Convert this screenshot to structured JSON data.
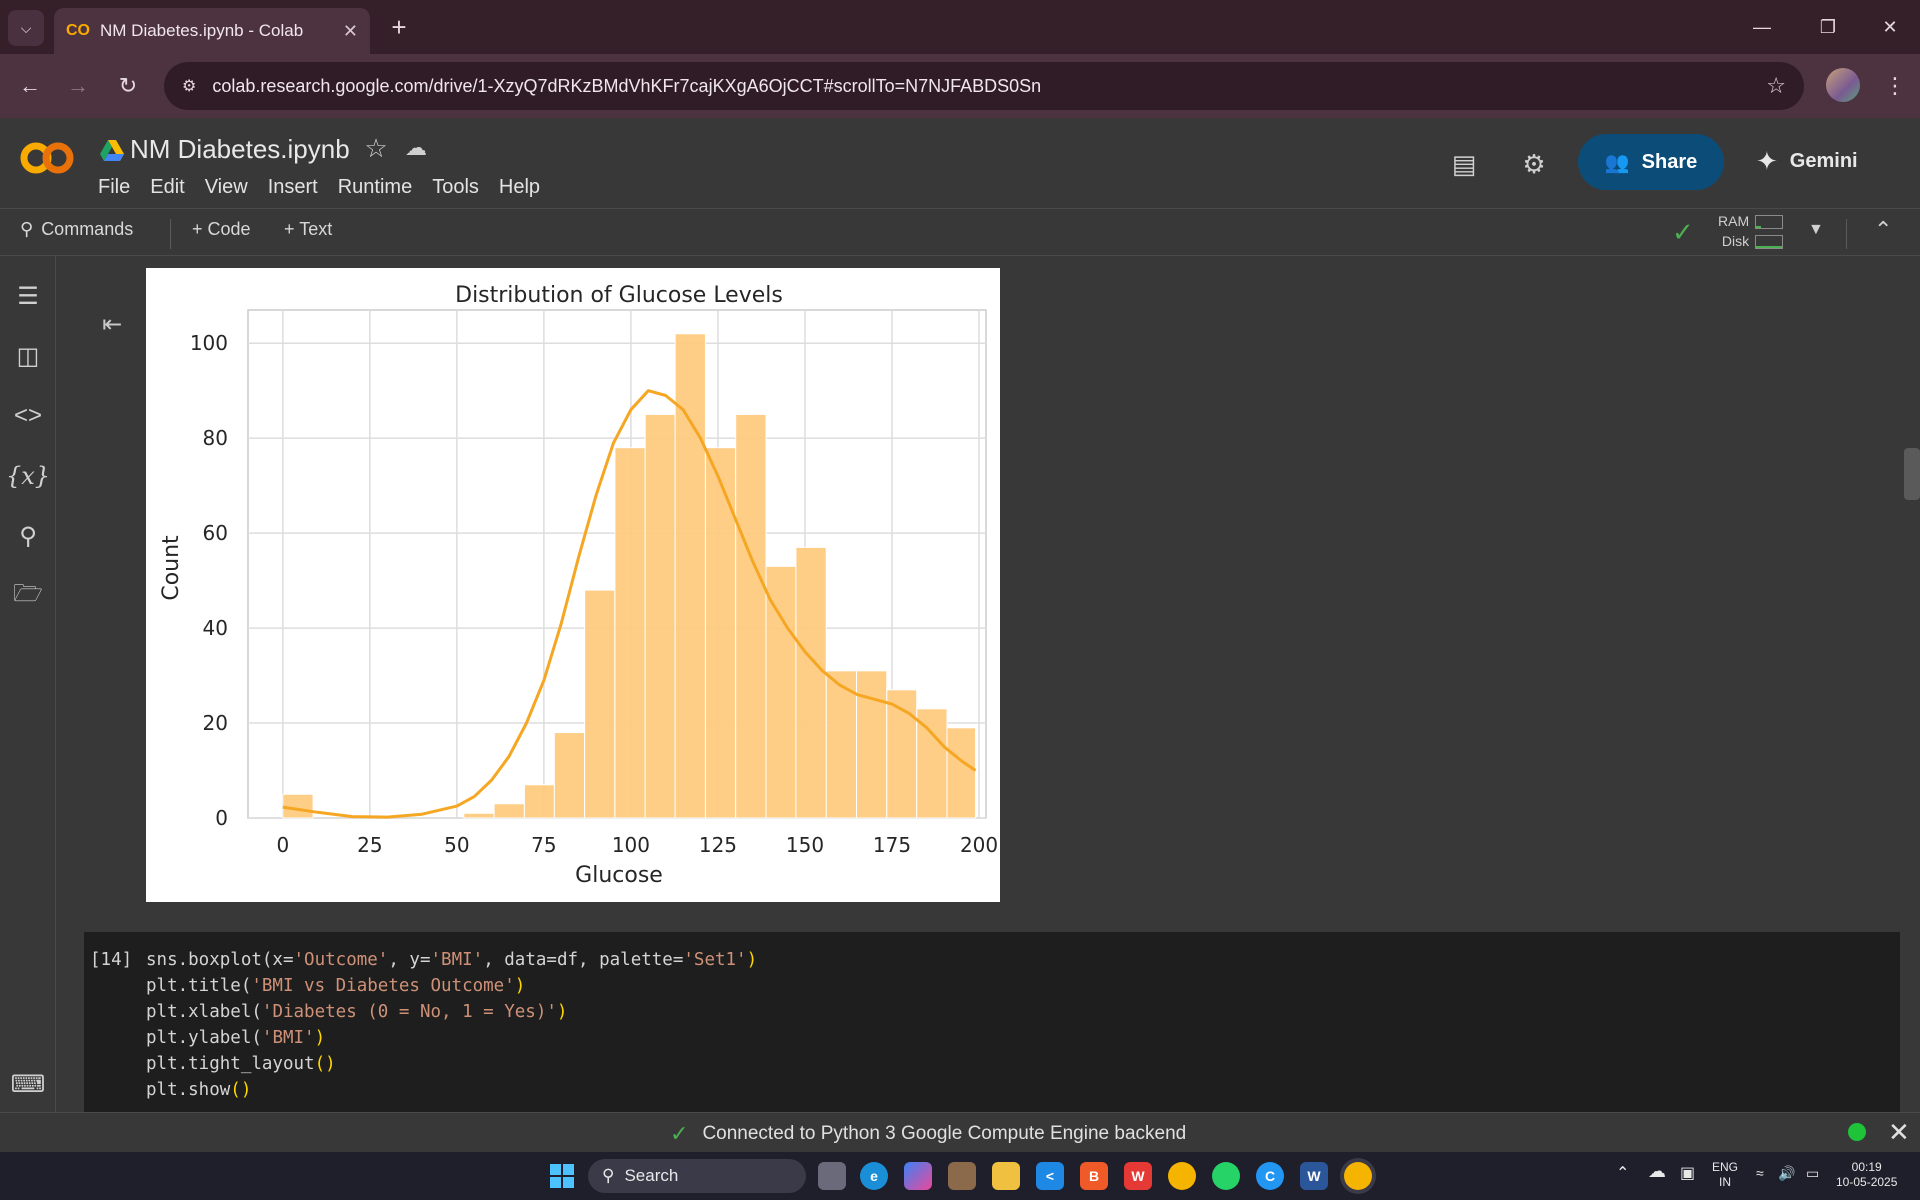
{
  "browser": {
    "tab_title": "NM Diabetes.ipynb - Colab",
    "url": "colab.research.google.com/drive/1-XzyQ7dRKzBMdVhKFr7cajKXgA6OjCCT#scrollTo=N7NJFABDS0Sn"
  },
  "colab": {
    "notebook_title": "NM Diabetes.ipynb",
    "menu": [
      "File",
      "Edit",
      "View",
      "Insert",
      "Runtime",
      "Tools",
      "Help"
    ],
    "share_label": "Share",
    "gemini_label": "Gemini"
  },
  "toolbar": {
    "commands_label": "Commands",
    "code_label": "+ Code",
    "text_label": "+ Text",
    "ram_label": "RAM",
    "disk_label": "Disk"
  },
  "chart_data": {
    "type": "bar",
    "title": "Distribution of Glucose Levels",
    "xlabel": "Glucose",
    "ylabel": "Count",
    "xlim": [
      -10,
      202
    ],
    "ylim": [
      0,
      107
    ],
    "xticks": [
      0,
      25,
      50,
      75,
      100,
      125,
      150,
      175,
      200
    ],
    "yticks": [
      0,
      20,
      40,
      60,
      80,
      100
    ],
    "grid": true,
    "bar_color": "#ffcc80",
    "kde_color": "#f5a623",
    "bins": [
      {
        "x0": 0,
        "x1": 8.7,
        "count": 5
      },
      {
        "x0": 52.0,
        "x1": 60.7,
        "count": 1
      },
      {
        "x0": 60.7,
        "x1": 69.4,
        "count": 3
      },
      {
        "x0": 69.4,
        "x1": 78.0,
        "count": 7
      },
      {
        "x0": 78.0,
        "x1": 86.7,
        "count": 18
      },
      {
        "x0": 86.7,
        "x1": 95.4,
        "count": 48
      },
      {
        "x0": 95.4,
        "x1": 104.1,
        "count": 78
      },
      {
        "x0": 104.1,
        "x1": 112.7,
        "count": 85
      },
      {
        "x0": 112.7,
        "x1": 121.4,
        "count": 102
      },
      {
        "x0": 121.4,
        "x1": 130.1,
        "count": 78
      },
      {
        "x0": 130.1,
        "x1": 138.8,
        "count": 85
      },
      {
        "x0": 138.8,
        "x1": 147.4,
        "count": 53
      },
      {
        "x0": 147.4,
        "x1": 156.1,
        "count": 57
      },
      {
        "x0": 156.1,
        "x1": 164.8,
        "count": 31
      },
      {
        "x0": 164.8,
        "x1": 173.5,
        "count": 31
      },
      {
        "x0": 173.5,
        "x1": 182.1,
        "count": 27
      },
      {
        "x0": 182.1,
        "x1": 190.8,
        "count": 23
      },
      {
        "x0": 190.8,
        "x1": 199.0,
        "count": 19
      },
      {
        "x0": 199.0,
        "x1": 199.0,
        "count": 0
      }
    ],
    "kde": {
      "x": [
        0,
        10,
        20,
        30,
        40,
        50,
        55,
        60,
        65,
        70,
        75,
        80,
        85,
        90,
        95,
        100,
        105,
        110,
        115,
        120,
        125,
        130,
        135,
        140,
        145,
        150,
        155,
        160,
        165,
        170,
        175,
        180,
        185,
        190,
        195,
        199
      ],
      "y": [
        2.3,
        1.2,
        0.3,
        0.2,
        0.8,
        2.5,
        4.5,
        8,
        13,
        20,
        29,
        41,
        55,
        68,
        79,
        86,
        90,
        89,
        86,
        80,
        72,
        63,
        54,
        46,
        40,
        35,
        31,
        28,
        26,
        25,
        24,
        22,
        19,
        15,
        12,
        10
      ]
    }
  },
  "code_cell": {
    "exec_count": "[14]",
    "lines": [
      [
        {
          "t": "sns.boxplot(x=",
          "c": "p"
        },
        {
          "t": "'Outcome'",
          "c": "s"
        },
        {
          "t": ", y=",
          "c": "p"
        },
        {
          "t": "'BMI'",
          "c": "s"
        },
        {
          "t": ", data=df, palette=",
          "c": "p"
        },
        {
          "t": "'Set1'",
          "c": "s"
        },
        {
          "t": ")",
          "c": "y"
        }
      ],
      [
        {
          "t": "plt.title(",
          "c": "p"
        },
        {
          "t": "'BMI vs Diabetes Outcome'",
          "c": "s"
        },
        {
          "t": ")",
          "c": "y"
        }
      ],
      [
        {
          "t": "plt.xlabel(",
          "c": "p"
        },
        {
          "t": "'Diabetes (0 = No, 1 = Yes)'",
          "c": "s"
        },
        {
          "t": ")",
          "c": "y"
        }
      ],
      [
        {
          "t": "plt.ylabel(",
          "c": "p"
        },
        {
          "t": "'BMI'",
          "c": "s"
        },
        {
          "t": ")",
          "c": "y"
        }
      ],
      [
        {
          "t": "plt.tight_layout",
          "c": "p"
        },
        {
          "t": "()",
          "c": "y"
        }
      ],
      [
        {
          "t": "plt.show",
          "c": "p"
        },
        {
          "t": "()",
          "c": "y"
        }
      ]
    ]
  },
  "status": {
    "text": "Connected to Python 3 Google Compute Engine backend"
  },
  "taskbar": {
    "search_label": "Search",
    "lang_top": "ENG",
    "lang_bottom": "IN",
    "time": "00:19",
    "date": "10-05-2025"
  }
}
